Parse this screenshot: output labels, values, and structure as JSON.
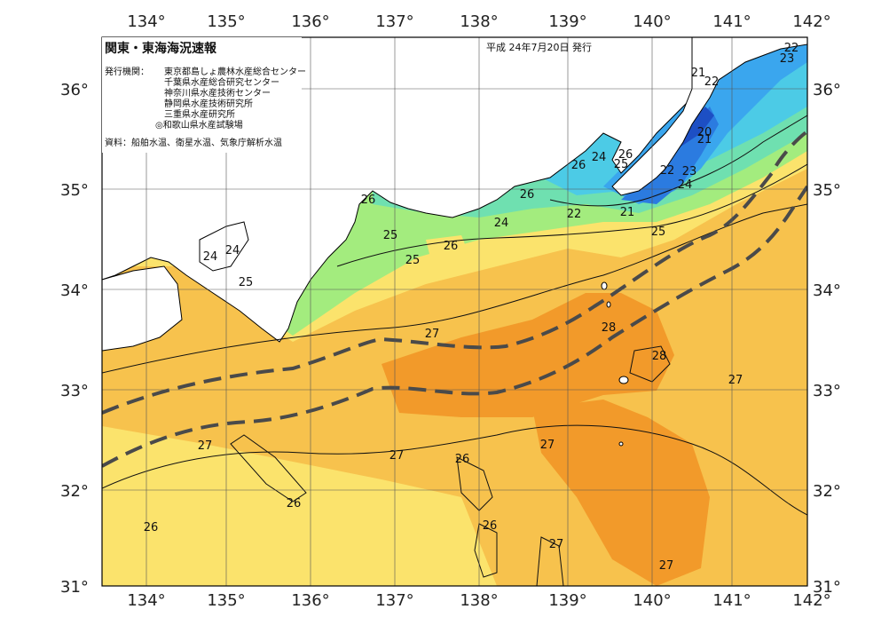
{
  "title": "関東・東海海況速報",
  "issue_date": "平成 24年7月20日 発行",
  "issuer_label": "発行機関：",
  "issuers": [
    "東京都島しょ農林水産総合センター",
    "千葉県水産総合研究センター",
    "神奈川県水産技術センター",
    "静岡県水産技術研究所",
    "三重県水産研究所",
    "◎和歌山県水産試験場"
  ],
  "source": "資料：船舶水温、衛星水温、気象庁解析水温",
  "lon_labels": [
    "134°",
    "135°",
    "136°",
    "137°",
    "138°",
    "139°",
    "140°",
    "141°",
    "142°"
  ],
  "lat_labels": [
    "36°",
    "35°",
    "34°",
    "33°",
    "32°",
    "31°"
  ],
  "isotherm_labels": [
    "22",
    "23",
    "21",
    "22",
    "20",
    "21",
    "22",
    "23",
    "24",
    "26",
    "25",
    "24",
    "26",
    "26",
    "22",
    "21",
    "25",
    "26",
    "25",
    "25",
    "26",
    "24",
    "24",
    "24",
    "25",
    "27",
    "28",
    "28",
    "27",
    "27",
    "27",
    "26",
    "26",
    "26",
    "26",
    "27"
  ],
  "colors": {
    "t20": "#1d4fc4",
    "t21": "#2b7be0",
    "t22": "#3aa6ee",
    "t23": "#4ccbe6",
    "t24": "#6fe0b0",
    "t25": "#a3ec7e",
    "t26": "#fbe36c",
    "t27": "#f7c24d",
    "t28": "#f29a2a",
    "land": "#ffffff",
    "kuroshio": "#4a4a4a"
  },
  "kuroshio_axis": "黒潮流軸（破線）"
}
